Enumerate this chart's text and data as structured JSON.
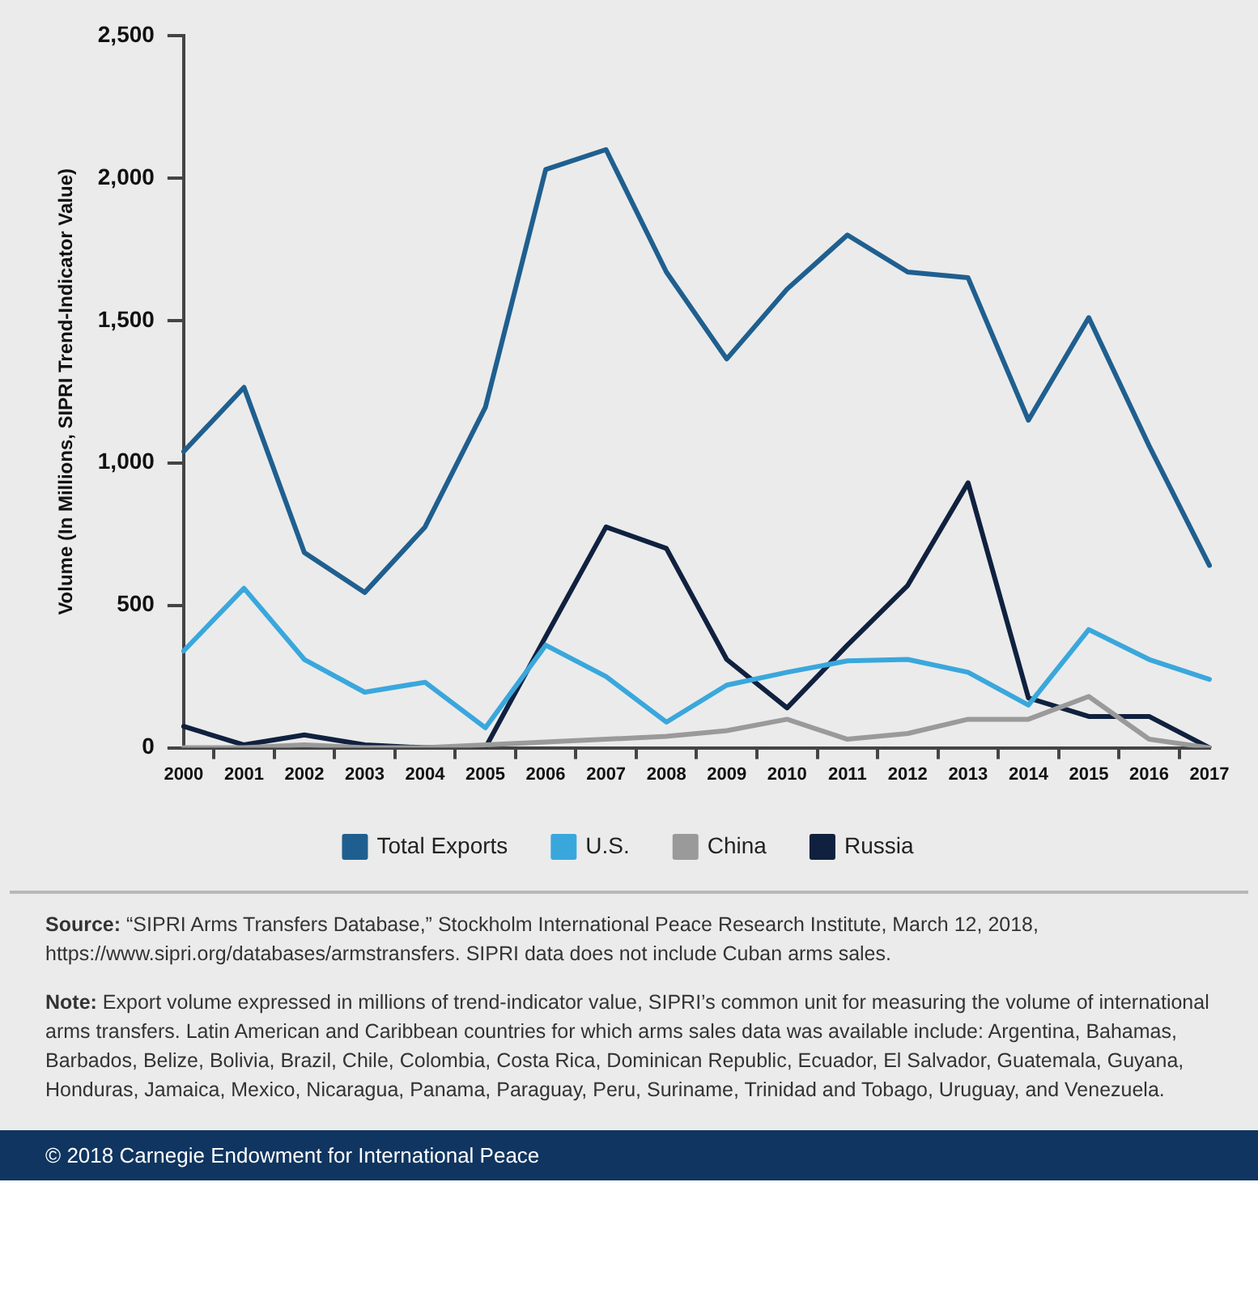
{
  "chart_data": {
    "type": "line",
    "ylabel": "Volume (In Millions, SIPRI Trend-Indicator Value)",
    "categories": [
      "2000",
      "2001",
      "2002",
      "2003",
      "2004",
      "2005",
      "2006",
      "2007",
      "2008",
      "2009",
      "2010",
      "2011",
      "2012",
      "2013",
      "2014",
      "2015",
      "2016",
      "2017"
    ],
    "series": [
      {
        "name": "Total Exports",
        "color": "#1f5f8f",
        "values": [
          1040,
          1265,
          685,
          545,
          775,
          1195,
          2030,
          2100,
          1670,
          1365,
          1610,
          1800,
          1670,
          1650,
          1150,
          1510,
          1060,
          640
        ]
      },
      {
        "name": "U.S.",
        "color": "#3aa7dc",
        "values": [
          340,
          560,
          310,
          195,
          230,
          70,
          360,
          250,
          90,
          220,
          265,
          305,
          310,
          265,
          150,
          415,
          310,
          240
        ]
      },
      {
        "name": "China",
        "color": "#9a9a9a",
        "values": [
          0,
          0,
          10,
          0,
          0,
          10,
          20,
          30,
          40,
          60,
          100,
          30,
          50,
          100,
          100,
          180,
          30,
          0
        ]
      },
      {
        "name": "Russia",
        "color": "#10213f",
        "values": [
          75,
          10,
          45,
          10,
          0,
          0,
          390,
          775,
          700,
          310,
          140,
          360,
          570,
          930,
          175,
          110,
          110,
          0
        ]
      }
    ],
    "ylim": [
      0,
      2500
    ],
    "yticks": [
      {
        "value": 0,
        "label": "0"
      },
      {
        "value": 500,
        "label": "500"
      },
      {
        "value": 1000,
        "label": "1,000"
      },
      {
        "value": 1500,
        "label": "1,500"
      },
      {
        "value": 2000,
        "label": "2,000"
      },
      {
        "value": 2500,
        "label": "2,500"
      }
    ],
    "grid": false,
    "legend": "bottom",
    "marker": "none",
    "line_style": "solid",
    "annotations": [
      "Source: “SIPRI Arms Transfers Database,” Stockholm International Peace Research Institute, March 12, 2018, https://www.sipri.org/databases/armstransfers. SIPRI data does not include Cuban arms sales.",
      "Note: Export volume expressed in millions of trend-indicator value, SIPRI’s common unit for measuring the volume of international arms transfers. Latin American and Caribbean countries for which arms sales data was available include: Argentina, Bahamas, Barbados, Belize, Bolivia, Brazil, Chile, Colombia, Costa Rica, Dominican Republic, Ecuador, El Salvador, Guatemala, Guyana, Honduras, Jamaica, Mexico, Nicaragua, Panama, Paraguay, Peru, Suriname, Trinidad and Tobago, Uruguay, and Venezuela.",
      "© 2018 Carnegie Endowment for International Peace"
    ]
  }
}
